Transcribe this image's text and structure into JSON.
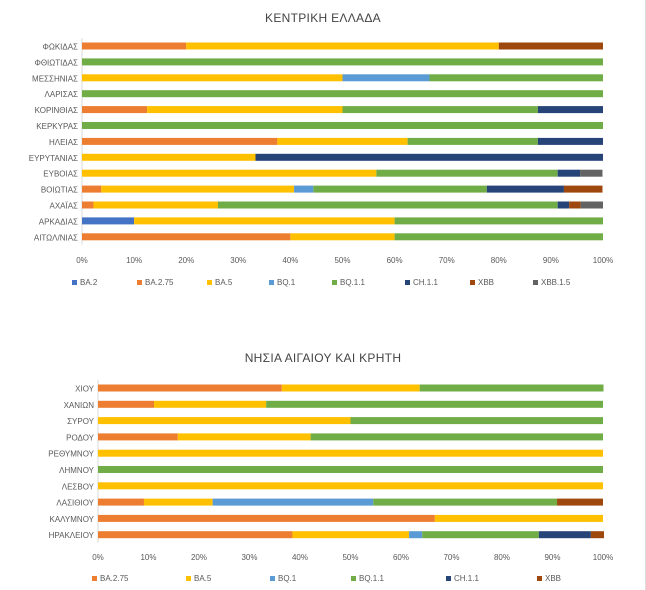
{
  "chart_data": [
    {
      "type": "bar",
      "stacked": "percent",
      "orientation": "horizontal",
      "title": "ΚΕΝΤΡΙΚΗ ΕΛΛΑΔΑ",
      "xlim": [
        0,
        100
      ],
      "x_ticks": [
        "0%",
        "10%",
        "20%",
        "30%",
        "40%",
        "50%",
        "60%",
        "70%",
        "80%",
        "90%",
        "100%"
      ],
      "legend_position": "bottom",
      "categories": [
        "ΦΩΚΙΔΑΣ",
        "ΦΘΙΩΤΙΔΑΣ",
        "ΜΕΣΣΗΝΙΑΣ",
        "ΛΑΡΙΣΑΣ",
        "ΚΟΡΙΝΘΙΑΣ",
        "ΚΕΡΚΥΡΑΣ",
        "ΗΛΕΙΑΣ",
        "ΕΥΡΥΤΑΝΙΑΣ",
        "ΕΥΒΟΙΑΣ",
        "ΒΟΙΩΤΙΑΣ",
        "ΑΧΑΪΑΣ",
        "ΑΡΚΑΔΙΑΣ",
        "ΑΙΤΩΛ/ΝΙΑΣ"
      ],
      "series": [
        {
          "name": "BA.2",
          "color": "#4472C4",
          "values": [
            0,
            0,
            0,
            0,
            0,
            0,
            0,
            0,
            0,
            0,
            0,
            10,
            0
          ]
        },
        {
          "name": "BA.2.75",
          "color": "#ED7D31",
          "values": [
            20,
            0,
            0,
            0,
            12.5,
            0,
            37.5,
            0,
            0,
            3.7,
            2.2,
            0,
            40
          ]
        },
        {
          "name": "BA.5",
          "color": "#FFC000",
          "values": [
            60,
            0,
            50,
            0,
            37.5,
            0,
            25,
            33.3,
            56.5,
            37.0,
            23.9,
            50,
            20
          ]
        },
        {
          "name": "BQ.1",
          "color": "#5B9BD5",
          "values": [
            0,
            0,
            16.7,
            0,
            0,
            0,
            0,
            0,
            0,
            3.7,
            0,
            0,
            0
          ]
        },
        {
          "name": "BQ.1.1",
          "color": "#70AD47",
          "values": [
            0,
            100,
            33.3,
            100,
            37.5,
            100,
            25,
            0,
            34.8,
            33.3,
            65.2,
            40,
            40
          ]
        },
        {
          "name": "CH.1.1",
          "color": "#264478",
          "values": [
            0,
            0,
            0,
            0,
            12.5,
            0,
            12.5,
            66.7,
            4.3,
            14.8,
            2.2,
            0,
            0
          ]
        },
        {
          "name": "XBB",
          "color": "#9E480E",
          "values": [
            20,
            0,
            0,
            0,
            0,
            0,
            0,
            0,
            0,
            7.4,
            2.2,
            0,
            0
          ]
        },
        {
          "name": "XBB.1.5",
          "color": "#636363",
          "values": [
            0,
            0,
            0,
            0,
            0,
            0,
            0,
            0,
            4.3,
            0,
            4.3,
            0,
            0
          ]
        }
      ]
    },
    {
      "type": "bar",
      "stacked": "percent",
      "orientation": "horizontal",
      "title": "ΝΗΣΙΑ ΑΙΓΑΙΟΥ ΚΑΙ ΚΡΗΤΗ",
      "xlim": [
        0,
        100
      ],
      "x_ticks": [
        "0%",
        "10%",
        "20%",
        "30%",
        "40%",
        "50%",
        "60%",
        "70%",
        "80%",
        "90%",
        "100%"
      ],
      "legend_position": "bottom",
      "categories": [
        "ΧΙΟΥ",
        "ΧΑΝΙΩΝ",
        "ΣΥΡΟΥ",
        "ΡΟΔΟΥ",
        "ΡΕΘΥΜΝΟΥ",
        "ΛΗΜΝΟΥ",
        "ΛΕΣΒΟΥ",
        "ΛΑΣΙΘΙΟΥ",
        "ΚΑΛΥΜΝΟΥ",
        "ΗΡΑΚΛΕΙΟΥ"
      ],
      "series": [
        {
          "name": "BA.2.75",
          "color": "#ED7D31",
          "values": [
            36.4,
            11.1,
            0,
            15.8,
            0,
            0,
            0,
            9.1,
            66.7,
            38.5
          ]
        },
        {
          "name": "BA.5",
          "color": "#FFC000",
          "values": [
            27.3,
            22.2,
            50,
            26.3,
            100,
            0,
            100,
            13.6,
            33.3,
            23.1
          ]
        },
        {
          "name": "BQ.1",
          "color": "#5B9BD5",
          "values": [
            0,
            0,
            0,
            0,
            0,
            0,
            0,
            31.8,
            0,
            2.6
          ]
        },
        {
          "name": "BQ.1.1",
          "color": "#70AD47",
          "values": [
            36.4,
            66.7,
            50,
            57.9,
            0,
            100,
            0,
            36.4,
            0,
            23.1
          ]
        },
        {
          "name": "CH.1.1",
          "color": "#264478",
          "values": [
            0,
            0,
            0,
            0,
            0,
            0,
            0,
            0,
            0,
            10.3
          ]
        },
        {
          "name": "XBB",
          "color": "#9E480E",
          "values": [
            0,
            0,
            0,
            0,
            0,
            0,
            0,
            9.1,
            0,
            2.6
          ]
        }
      ]
    }
  ]
}
